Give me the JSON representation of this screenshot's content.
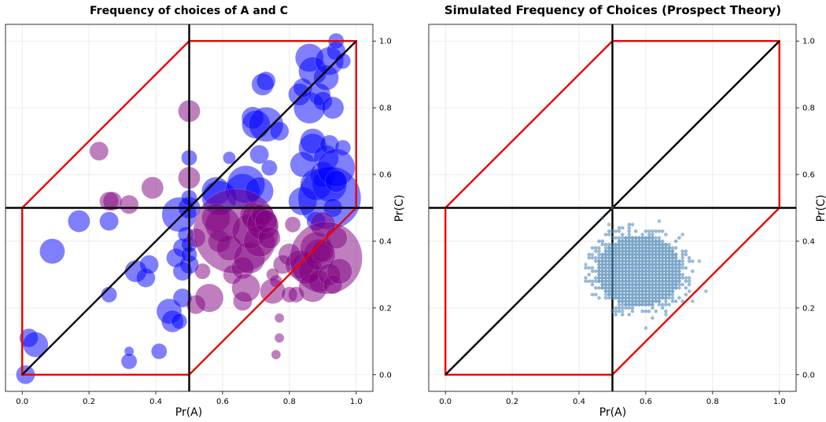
{
  "chart_data": [
    {
      "type": "scatter",
      "title": "Frequency of choices of A and C",
      "xlabel": "Pr(A)",
      "ylabel": "Pr(C)",
      "xlim": [
        -0.05,
        1.05
      ],
      "ylim": [
        -0.05,
        1.05
      ],
      "xticks": [
        "0.0",
        "0.2",
        "0.4",
        "0.6",
        "0.8",
        "1.0"
      ],
      "yticks": [
        "0.0",
        "0.2",
        "0.4",
        "0.6",
        "0.8",
        "1.0"
      ],
      "grid": true,
      "legend": "none",
      "reference_lines": {
        "vertical_x": 0.5,
        "horizontal_y": 0.5,
        "diagonal": [
          [
            0,
            0
          ],
          [
            1,
            1
          ]
        ],
        "boundary_polygon": [
          [
            0,
            0
          ],
          [
            0.5,
            0
          ],
          [
            1,
            0.5
          ],
          [
            1,
            1
          ],
          [
            0.5,
            1
          ],
          [
            0,
            0.5
          ]
        ]
      },
      "colors": {
        "blue": "#0000ff",
        "purple": "#800080",
        "lines": "#000000",
        "boundary": "#ee0000"
      },
      "series": [
        {
          "color": "blue",
          "points": [
            [
              0.01,
              0.0,
              0.3
            ],
            [
              0.04,
              0.09,
              0.4
            ],
            [
              0.02,
              0.11,
              0.3
            ],
            [
              0.09,
              0.37,
              0.4
            ],
            [
              0.17,
              0.46,
              0.35
            ],
            [
              0.26,
              0.24,
              0.25
            ],
            [
              0.26,
              0.46,
              0.3
            ],
            [
              0.32,
              0.07,
              0.15
            ],
            [
              0.32,
              0.04,
              0.25
            ],
            [
              0.34,
              0.31,
              0.35
            ],
            [
              0.37,
              0.29,
              0.3
            ],
            [
              0.38,
              0.33,
              0.3
            ],
            [
              0.41,
              0.07,
              0.25
            ],
            [
              0.44,
              0.19,
              0.4
            ],
            [
              0.45,
              0.16,
              0.35
            ],
            [
              0.46,
              0.35,
              0.3
            ],
            [
              0.47,
              0.16,
              0.25
            ],
            [
              0.47,
              0.48,
              0.55
            ],
            [
              0.48,
              0.23,
              0.3
            ],
            [
              0.48,
              0.31,
              0.3
            ],
            [
              0.48,
              0.38,
              0.3
            ],
            [
              0.49,
              0.42,
              0.25
            ],
            [
              0.5,
              0.33,
              0.3
            ],
            [
              0.5,
              0.36,
              0.25
            ],
            [
              0.5,
              0.39,
              0.25
            ],
            [
              0.5,
              0.5,
              0.35
            ],
            [
              0.5,
              0.53,
              0.25
            ],
            [
              0.5,
              0.65,
              0.25
            ],
            [
              0.58,
              0.55,
              0.45
            ],
            [
              0.59,
              0.53,
              0.55
            ],
            [
              0.62,
              0.65,
              0.2
            ],
            [
              0.66,
              0.55,
              0.55
            ],
            [
              0.67,
              0.57,
              0.6
            ],
            [
              0.69,
              0.77,
              0.35
            ],
            [
              0.7,
              0.75,
              0.45
            ],
            [
              0.71,
              0.55,
              0.45
            ],
            [
              0.71,
              0.66,
              0.3
            ],
            [
              0.72,
              0.87,
              0.35
            ],
            [
              0.73,
              0.88,
              0.3
            ],
            [
              0.73,
              0.75,
              0.55
            ],
            [
              0.74,
              0.62,
              0.25
            ],
            [
              0.77,
              0.73,
              0.3
            ],
            [
              0.83,
              0.84,
              0.35
            ],
            [
              0.84,
              0.86,
              0.3
            ],
            [
              0.84,
              0.63,
              0.4
            ],
            [
              0.84,
              0.52,
              0.45
            ],
            [
              0.86,
              0.8,
              0.5
            ],
            [
              0.86,
              0.95,
              0.45
            ],
            [
              0.87,
              0.91,
              0.45
            ],
            [
              0.87,
              0.68,
              0.45
            ],
            [
              0.87,
              0.7,
              0.4
            ],
            [
              0.88,
              0.57,
              0.5
            ],
            [
              0.88,
              0.46,
              0.3
            ],
            [
              0.89,
              0.84,
              0.35
            ],
            [
              0.9,
              0.6,
              0.4
            ],
            [
              0.9,
              0.82,
              0.3
            ],
            [
              0.91,
              0.89,
              0.4
            ],
            [
              0.91,
              0.65,
              0.4
            ],
            [
              0.92,
              0.94,
              0.45
            ],
            [
              0.92,
              0.69,
              0.3
            ],
            [
              0.92,
              0.57,
              0.55
            ],
            [
              0.92,
              0.53,
              1.0
            ],
            [
              0.93,
              0.8,
              0.35
            ],
            [
              0.93,
              0.5,
              0.3
            ],
            [
              0.94,
              0.97,
              0.3
            ],
            [
              0.94,
              0.62,
              0.6
            ],
            [
              0.94,
              0.58,
              0.35
            ],
            [
              0.94,
              1.0,
              0.25
            ],
            [
              0.96,
              0.94,
              0.25
            ],
            [
              0.96,
              0.68,
              0.25
            ]
          ]
        },
        {
          "color": "purple",
          "points": [
            [
              0.23,
              0.67,
              0.3
            ],
            [
              0.26,
              0.52,
              0.3
            ],
            [
              0.27,
              0.52,
              0.3
            ],
            [
              0.32,
              0.51,
              0.3
            ],
            [
              0.39,
              0.56,
              0.35
            ],
            [
              0.5,
              0.59,
              0.35
            ],
            [
              0.5,
              0.79,
              0.35
            ],
            [
              0.52,
              0.41,
              0.3
            ],
            [
              0.52,
              0.21,
              0.3
            ],
            [
              0.54,
              0.31,
              0.25
            ],
            [
              0.56,
              0.23,
              0.45
            ],
            [
              0.58,
              0.47,
              0.45
            ],
            [
              0.59,
              0.4,
              0.35
            ],
            [
              0.6,
              0.45,
              0.55
            ],
            [
              0.62,
              0.38,
              0.4
            ],
            [
              0.63,
              0.3,
              0.3
            ],
            [
              0.64,
              0.43,
              1.35
            ],
            [
              0.66,
              0.32,
              0.35
            ],
            [
              0.66,
              0.22,
              0.3
            ],
            [
              0.67,
              0.26,
              0.45
            ],
            [
              0.68,
              0.35,
              0.5
            ],
            [
              0.68,
              0.43,
              0.55
            ],
            [
              0.69,
              0.48,
              0.4
            ],
            [
              0.7,
              0.47,
              0.45
            ],
            [
              0.71,
              0.4,
              0.5
            ],
            [
              0.72,
              0.45,
              0.5
            ],
            [
              0.72,
              0.48,
              0.35
            ],
            [
              0.73,
              0.46,
              0.35
            ],
            [
              0.74,
              0.41,
              0.35
            ],
            [
              0.75,
              0.25,
              0.4
            ],
            [
              0.75,
              0.3,
              0.2
            ],
            [
              0.76,
              0.28,
              0.2
            ],
            [
              0.76,
              0.06,
              0.15
            ],
            [
              0.77,
              0.11,
              0.15
            ],
            [
              0.77,
              0.17,
              0.15
            ],
            [
              0.78,
              0.33,
              0.3
            ],
            [
              0.8,
              0.36,
              0.35
            ],
            [
              0.8,
              0.24,
              0.25
            ],
            [
              0.81,
              0.45,
              0.25
            ],
            [
              0.82,
              0.24,
              0.25
            ],
            [
              0.83,
              0.33,
              0.45
            ],
            [
              0.85,
              0.32,
              0.5
            ],
            [
              0.86,
              0.31,
              0.35
            ],
            [
              0.87,
              0.26,
              0.45
            ],
            [
              0.88,
              0.38,
              0.5
            ],
            [
              0.89,
              0.36,
              0.5
            ],
            [
              0.89,
              0.28,
              0.35
            ],
            [
              0.9,
              0.37,
              0.35
            ],
            [
              0.9,
              0.45,
              0.4
            ],
            [
              0.91,
              0.35,
              1.15
            ],
            [
              0.92,
              0.3,
              0.35
            ],
            [
              0.93,
              0.27,
              0.3
            ],
            [
              0.94,
              0.41,
              0.35
            ],
            [
              0.95,
              0.31,
              0.4
            ]
          ]
        }
      ]
    },
    {
      "type": "scatter",
      "title": "Simulated Frequency of Choices (Prospect Theory)",
      "xlabel": "Pr(A)",
      "ylabel": "Pr(C)",
      "xlim": [
        -0.05,
        1.05
      ],
      "ylim": [
        -0.05,
        1.05
      ],
      "xticks": [
        "0.0",
        "0.2",
        "0.4",
        "0.6",
        "0.8",
        "1.0"
      ],
      "yticks": [
        "0.0",
        "0.2",
        "0.4",
        "0.6",
        "0.8",
        "1.0"
      ],
      "grid": true,
      "legend": "none",
      "reference_lines": {
        "vertical_x": 0.5,
        "horizontal_y": 0.5,
        "diagonal": [
          [
            0,
            0
          ],
          [
            1,
            1
          ]
        ],
        "boundary_polygon": [
          [
            0,
            0
          ],
          [
            0.5,
            0
          ],
          [
            1,
            0.5
          ],
          [
            1,
            1
          ],
          [
            0.5,
            1
          ],
          [
            0,
            0.5
          ]
        ]
      },
      "colors": {
        "points": "#4682b4",
        "lines": "#000000",
        "boundary": "#ee0000"
      },
      "cloud": {
        "grid_step": 0.01,
        "center": [
          0.58,
          0.31
        ],
        "radius_x": 0.17,
        "radius_y": 0.145,
        "x_range": [
          0.4,
          0.8
        ],
        "y_range": [
          0.14,
          0.5
        ],
        "sample_points": [
          [
            0.5,
            0.5
          ],
          [
            0.42,
            0.33
          ],
          [
            0.44,
            0.36
          ],
          [
            0.47,
            0.47
          ],
          [
            0.49,
            0.45
          ],
          [
            0.78,
            0.25
          ],
          [
            0.76,
            0.34
          ],
          [
            0.64,
            0.46
          ],
          [
            0.6,
            0.14
          ],
          [
            0.53,
            0.19
          ],
          [
            0.66,
            0.18
          ],
          [
            0.74,
            0.22
          ],
          [
            0.71,
            0.42
          ],
          [
            0.48,
            0.24
          ]
        ]
      }
    }
  ]
}
